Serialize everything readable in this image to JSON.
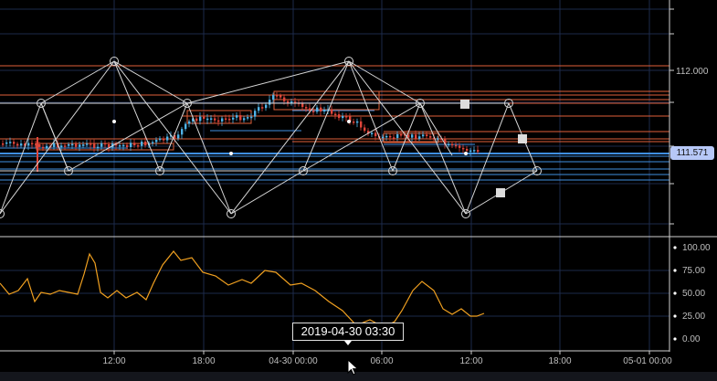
{
  "price_axis": {
    "labels": [
      "112.000"
    ],
    "current_price": "111.571"
  },
  "indicator_axis": {
    "labels": [
      "100.00",
      "75.00",
      "50.00",
      "25.00",
      "0.00"
    ]
  },
  "time_axis": {
    "labels": [
      "12:00",
      "18:00",
      "04-30 00:00",
      "06:00",
      "12:00",
      "18:00",
      "05-01 00:00"
    ]
  },
  "crosshair": {
    "time_label": "2019-04-30 03:30"
  },
  "colors": {
    "background": "#000000",
    "grid": "#1d2a4a",
    "pattern_lines": "#d8d8d8",
    "resistance_lines": "#e0603a",
    "support_lines": "#3f8fe0",
    "candle_up": "#4fb3e8",
    "candle_down": "#e0453a",
    "indicator": "#f0a020",
    "price_tag": "#b7c8f7"
  },
  "icons": [
    "mouse-cursor-icon"
  ]
}
